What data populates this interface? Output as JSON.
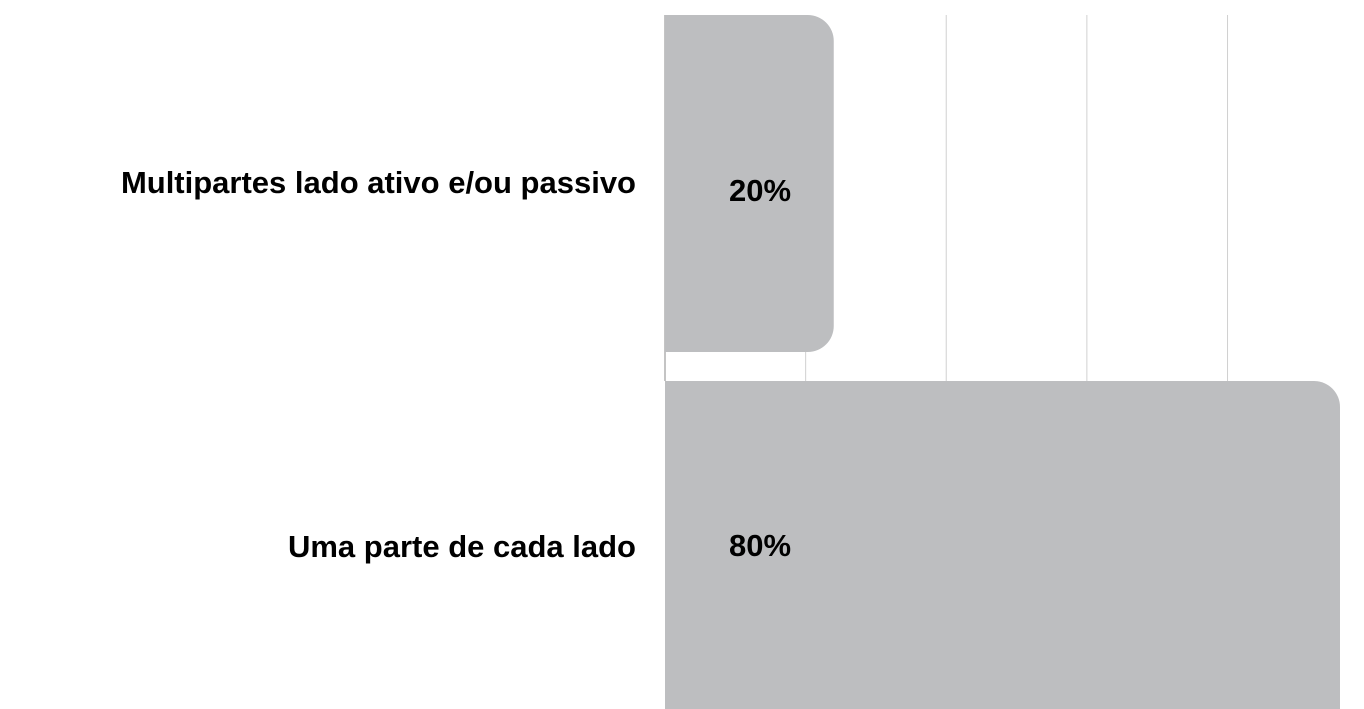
{
  "chart_data": {
    "type": "bar",
    "orientation": "horizontal",
    "categories": [
      "Multipartes lado ativo e/ou passivo",
      "Uma parte de cada lado"
    ],
    "values": [
      20,
      80
    ],
    "value_labels": [
      "20%",
      "80%"
    ],
    "color": "#bdbec0",
    "xlim": [
      0,
      80
    ],
    "xticks": [
      0,
      16.67,
      33.33,
      50,
      66.67
    ],
    "grid": true
  }
}
